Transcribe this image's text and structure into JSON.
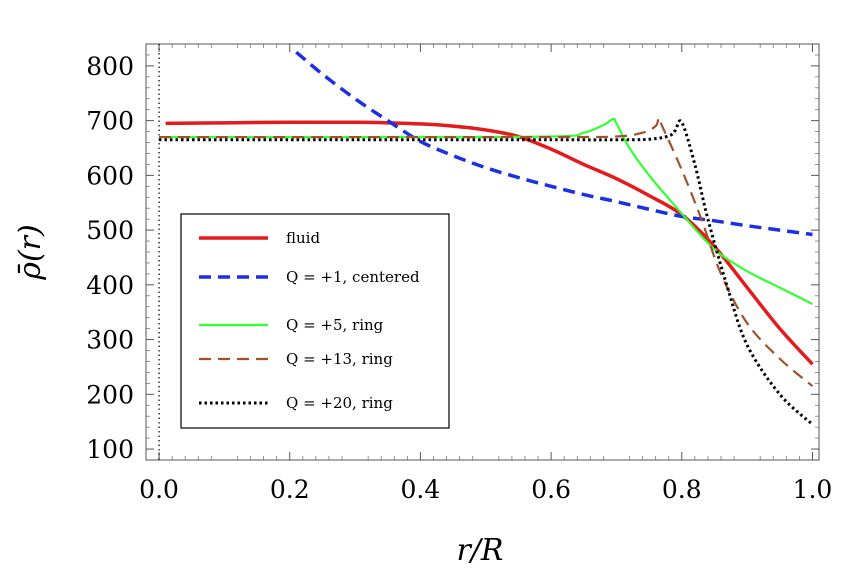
{
  "chart_data": {
    "type": "line",
    "xlabel": "r/R",
    "ylabel": "ρ̄(r)",
    "xlim": [
      -0.02,
      1.01
    ],
    "ylim": [
      80,
      840
    ],
    "xticks": [
      0.0,
      0.2,
      0.4,
      0.6,
      0.8,
      1.0
    ],
    "xtick_labels": [
      "0.0",
      "0.2",
      "0.4",
      "0.6",
      "0.8",
      "1.0"
    ],
    "yticks": [
      100,
      200,
      300,
      400,
      500,
      600,
      700,
      800
    ],
    "ytick_labels": [
      "100",
      "200",
      "300",
      "400",
      "500",
      "600",
      "700",
      "800"
    ],
    "vline_x": 0.0,
    "legend_position": "lower-left",
    "series": [
      {
        "name": "fluid",
        "color": "#e41a1c",
        "dash": "solid",
        "x": [
          0.01,
          0.1,
          0.2,
          0.3,
          0.35,
          0.4,
          0.45,
          0.5,
          0.55,
          0.6,
          0.65,
          0.7,
          0.75,
          0.8,
          0.85,
          0.9,
          0.95,
          1.0
        ],
        "y": [
          695,
          696,
          697,
          697,
          696,
          694,
          690,
          683,
          671,
          648,
          620,
          594,
          563,
          528,
          470,
          395,
          320,
          255
        ]
      },
      {
        "name": "Q = +1, centered",
        "color": "#1c2fe4",
        "dash": "dashed",
        "x": [
          0.21,
          0.25,
          0.3,
          0.35,
          0.4,
          0.45,
          0.5,
          0.55,
          0.6,
          0.65,
          0.7,
          0.75,
          0.8,
          0.85,
          0.9,
          0.95,
          1.0
        ],
        "y": [
          825,
          785,
          740,
          700,
          662,
          636,
          614,
          596,
          580,
          565,
          552,
          538,
          525,
          517,
          508,
          500,
          492
        ]
      },
      {
        "name": "Q = +5, ring",
        "color": "#33ff33",
        "dash": "solid",
        "x": [
          0.0,
          0.3,
          0.6,
          0.65,
          0.68,
          0.695,
          0.7,
          0.72,
          0.75,
          0.8,
          0.85,
          0.9,
          0.95,
          1.0
        ],
        "y": [
          670,
          670,
          671,
          678,
          692,
          703,
          695,
          650,
          600,
          530,
          465,
          425,
          395,
          365
        ]
      },
      {
        "name": "Q = +13, ring",
        "color": "#a0522d",
        "dash": "dashed",
        "x": [
          0.0,
          0.3,
          0.6,
          0.7,
          0.74,
          0.76,
          0.765,
          0.77,
          0.8,
          0.83,
          0.86,
          0.9,
          0.95,
          1.0
        ],
        "y": [
          670,
          670,
          670,
          671,
          678,
          690,
          705,
          690,
          610,
          520,
          420,
          330,
          265,
          215
        ]
      },
      {
        "name": "Q = +20, ring",
        "color": "#000000",
        "dash": "dotted",
        "x": [
          0.0,
          0.3,
          0.6,
          0.7,
          0.75,
          0.78,
          0.79,
          0.8,
          0.82,
          0.84,
          0.87,
          0.9,
          0.95,
          1.0
        ],
        "y": [
          665,
          665,
          665,
          665,
          666,
          672,
          682,
          697,
          620,
          520,
          395,
          290,
          200,
          145
        ]
      }
    ]
  }
}
